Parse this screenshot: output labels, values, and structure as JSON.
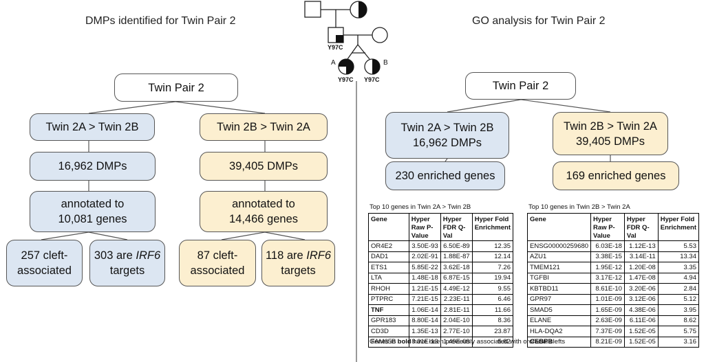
{
  "left": {
    "title": "DMPs identified for Twin Pair 2",
    "root": "Twin Pair 2",
    "a_branch": {
      "header": "Twin 2A > Twin 2B",
      "dmps": "16,962 DMPs",
      "annotated_line1": "annotated to",
      "annotated_line2": "10,081 genes",
      "cleft_line1": "257 cleft-",
      "cleft_line2": "associated",
      "irf6_pre": "303 are ",
      "irf6_gene": "IRF6",
      "irf6_line2": "targets"
    },
    "b_branch": {
      "header": "Twin 2B > Twin 2A",
      "dmps": "39,405 DMPs",
      "annotated_line1": "annotated to",
      "annotated_line2": "14,466 genes",
      "cleft_line1": "87 cleft-",
      "cleft_line2": "associated",
      "irf6_pre": "118 are ",
      "irf6_gene": "IRF6",
      "irf6_line2": "targets"
    }
  },
  "pedigree": {
    "label_father": "Y97C",
    "label_a": "Y97C",
    "label_b": "Y97C",
    "twin_a": "A",
    "twin_b": "B"
  },
  "right": {
    "title": "GO analysis for Twin Pair 2",
    "root": "Twin Pair 2",
    "a_branch": {
      "header_line1": "Twin 2A > Twin 2B",
      "header_line2": "16,962 DMPs",
      "enriched": "230 enriched genes"
    },
    "b_branch": {
      "header_line1": "Twin 2B > Twin 2A",
      "header_line2": "39,405 DMPs",
      "enriched": "169 enriched genes"
    }
  },
  "tables": {
    "columns": [
      "Gene",
      "Hyper Raw P-Value",
      "Hyper FDR Q-Val",
      "Hyper Fold Enrichment"
    ],
    "table_a": {
      "caption": "Top 10 genes in Twin 2A > Twin 2B",
      "rows": [
        {
          "gene": "OR4E2",
          "raw": "3.50E-93",
          "fdr": "6.50E-89",
          "fold": "12.35",
          "bold": false
        },
        {
          "gene": "DAD1",
          "raw": "2.02E-91",
          "fdr": "1.88E-87",
          "fold": "12.14",
          "bold": false
        },
        {
          "gene": "ETS1",
          "raw": "5.85E-22",
          "fdr": "3.62E-18",
          "fold": "7.26",
          "bold": false
        },
        {
          "gene": "LTA",
          "raw": "1.48E-18",
          "fdr": "6.87E-15",
          "fold": "19.94",
          "bold": false
        },
        {
          "gene": "RHOH",
          "raw": "1.21E-15",
          "fdr": "4.49E-12",
          "fold": "9.55",
          "bold": false
        },
        {
          "gene": "PTPRC",
          "raw": "7.21E-15",
          "fdr": "2.23E-11",
          "fold": "6.46",
          "bold": false
        },
        {
          "gene": "TNF",
          "raw": "1.06E-14",
          "fdr": "2.81E-11",
          "fold": "11.66",
          "bold": true
        },
        {
          "gene": "GPR183",
          "raw": "8.80E-14",
          "fdr": "2.04E-10",
          "fold": "8.36",
          "bold": false
        },
        {
          "gene": "CD3D",
          "raw": "1.35E-13",
          "fdr": "2.77E-10",
          "fold": "23.87",
          "bold": false
        },
        {
          "gene": "FAM65B",
          "raw": "8.01E-13",
          "fdr": "1.49E-09",
          "fold": "5.82",
          "bold": false
        }
      ]
    },
    "table_b": {
      "caption": "Top 10 genes in Twin 2B > Twin 2A",
      "rows": [
        {
          "gene": "ENSG00000259680",
          "raw": "6.03E-18",
          "fdr": "1.12E-13",
          "fold": "5.53",
          "bold": false
        },
        {
          "gene": "AZU1",
          "raw": "3.38E-15",
          "fdr": "3.14E-11",
          "fold": "13.34",
          "bold": false
        },
        {
          "gene": "TMEM121",
          "raw": "1.95E-12",
          "fdr": "1.20E-08",
          "fold": "3.35",
          "bold": false
        },
        {
          "gene": "TGFBI",
          "raw": "3.17E-12",
          "fdr": "1.47E-08",
          "fold": "4.94",
          "bold": false
        },
        {
          "gene": "KBTBD11",
          "raw": "8.61E-10",
          "fdr": "3.20E-06",
          "fold": "2.84",
          "bold": false
        },
        {
          "gene": "GPR97",
          "raw": "1.01E-09",
          "fdr": "3.12E-06",
          "fold": "5.12",
          "bold": false
        },
        {
          "gene": "SMAD5",
          "raw": "1.65E-09",
          "fdr": "4.38E-06",
          "fold": "3.95",
          "bold": false
        },
        {
          "gene": "ELANE",
          "raw": "2.63E-09",
          "fdr": "6.11E-06",
          "fold": "8.62",
          "bold": false
        },
        {
          "gene": "HLA-DQA2",
          "raw": "7.37E-09",
          "fdr": "1.52E-05",
          "fold": "5.75",
          "bold": false
        },
        {
          "gene": "CEBPB",
          "raw": "8.21E-09",
          "fdr": "1.52E-05",
          "fold": "3.16",
          "bold": true
        }
      ]
    },
    "footnote_pre": "Genes in ",
    "footnote_bold": "bold",
    "footnote_post": " have been previously associated with orofacial clefts"
  },
  "colors": {
    "blue_fill": "#dce6f2",
    "yellow_fill": "#fcefd0",
    "border": "#555555"
  }
}
